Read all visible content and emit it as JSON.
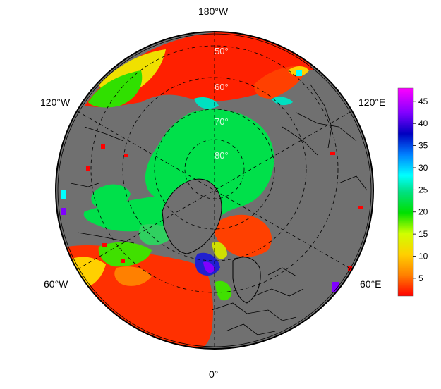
{
  "map": {
    "projection": "north-polar-stereographic",
    "lon_labels": {
      "top": "180°W",
      "upper_left": "120°W",
      "upper_right": "120°E",
      "lower_left": "60°W",
      "lower_right": "60°E",
      "bottom": "0°"
    },
    "lat_labels": [
      "50°",
      "60°",
      "70°",
      "80°"
    ],
    "colors": {
      "land": "#707070",
      "ocean_outline": "#000000",
      "graticule": "#000000",
      "ice_region": "#00e04a"
    }
  },
  "colorbar": {
    "ticks": [
      "5",
      "10",
      "15",
      "20",
      "25",
      "30",
      "35",
      "40",
      "45"
    ],
    "min": 1,
    "max": 48,
    "gradient_stops": [
      "#ff0000",
      "#ff8000",
      "#ffd000",
      "#d0ff00",
      "#00e000",
      "#00e080",
      "#00ffff",
      "#0080ff",
      "#0000c0",
      "#8000ff",
      "#ff00ff"
    ]
  },
  "chart_data": {
    "type": "heatmap",
    "title": "",
    "colorbar_range": [
      1,
      48
    ],
    "colorbar_ticks": [
      5,
      10,
      15,
      20,
      25,
      30,
      35,
      40,
      45
    ],
    "lon_lines": [
      "180°W",
      "120°W",
      "120°E",
      "60°W",
      "60°E",
      "0°"
    ],
    "lat_circles": [
      "50°",
      "60°",
      "70°",
      "80°"
    ]
  }
}
